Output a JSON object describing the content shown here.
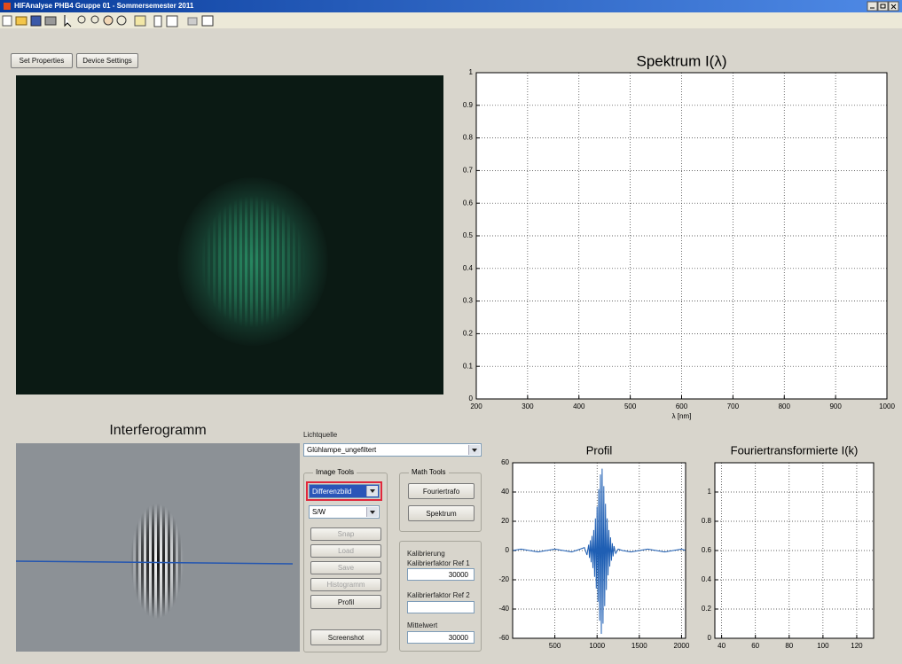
{
  "window": {
    "title": "HIFAnalyse PHB4 Gruppe 01 - Sommersemester 2011"
  },
  "buttons": {
    "set_properties": "Set Properties",
    "device_settings": "Device Settings"
  },
  "interferogram_label": "Interferogramm",
  "controls": {
    "light_source_label": "Lichtquelle",
    "light_source": "Glühlampe_ungefiltert",
    "image_tools": {
      "title": "Image Tools",
      "mode": "Differenzbild",
      "color_mode": "S/W",
      "buttons": [
        "Snap",
        "Load",
        "Save",
        "Histogramm",
        "Profil"
      ],
      "screenshot": "Screenshot"
    },
    "math_tools": {
      "title": "Math Tools",
      "buttons": [
        "Fouriertrafo",
        "Spektrum"
      ]
    },
    "calibration": {
      "title": "Kalibrierung",
      "ref1_label": "Kalibrierfaktor Ref 1",
      "ref1_value": 30000,
      "ref2_label": "Kalibrierfaktor Ref 2",
      "mean_label": "Mittelwert",
      "mean_value": 30000
    }
  },
  "chart_data": [
    {
      "type": "line",
      "title": "Spektrum I(λ)",
      "xlabel": "λ [nm]",
      "xlim": [
        200,
        1000
      ],
      "ylim": [
        0,
        1
      ],
      "xticks": [
        200,
        300,
        400,
        500,
        600,
        700,
        800,
        900,
        1000
      ],
      "yticks": [
        0,
        0.1,
        0.2,
        0.3,
        0.4,
        0.5,
        0.6,
        0.7,
        0.8,
        0.9,
        1
      ],
      "grid": true
    },
    {
      "type": "line",
      "title": "Profil",
      "xlim": [
        0,
        2048
      ],
      "ylim": [
        -60,
        60
      ],
      "xticks": [
        500,
        1000,
        1500,
        2000
      ],
      "yticks": [
        -60,
        -40,
        -20,
        0,
        20,
        40,
        60
      ],
      "grid": true,
      "x": [
        0,
        100,
        200,
        300,
        400,
        500,
        600,
        700,
        800,
        850,
        880,
        900,
        910,
        920,
        930,
        940,
        950,
        960,
        970,
        980,
        990,
        1000,
        1010,
        1020,
        1030,
        1040,
        1050,
        1060,
        1070,
        1080,
        1090,
        1100,
        1110,
        1120,
        1130,
        1140,
        1150,
        1160,
        1170,
        1180,
        1190,
        1200,
        1220,
        1250,
        1300,
        1400,
        1500,
        1600,
        1700,
        1800,
        1900,
        2000,
        2048
      ],
      "series": [
        {
          "color": "#1f5fb4",
          "values": [
            0,
            1,
            0,
            -1,
            0,
            1,
            0,
            -1,
            1,
            2,
            -3,
            4,
            -5,
            7,
            -8,
            10,
            -12,
            14,
            -18,
            22,
            -26,
            30,
            -35,
            42,
            -48,
            52,
            -57,
            56,
            -50,
            44,
            -38,
            32,
            -27,
            22,
            -17,
            14,
            -11,
            9,
            -7,
            5,
            -4,
            3,
            -2,
            1,
            0,
            -1,
            0,
            1,
            0,
            -1,
            0,
            1,
            0
          ]
        }
      ]
    },
    {
      "type": "line",
      "title": "Fouriertransformierte I(k)",
      "xlim": [
        36,
        130
      ],
      "ylim": [
        0,
        1.2
      ],
      "xticks": [
        40,
        60,
        80,
        100,
        120
      ],
      "yticks": [
        0,
        0.2,
        0.4,
        0.6,
        0.8,
        1
      ],
      "grid": true
    }
  ]
}
